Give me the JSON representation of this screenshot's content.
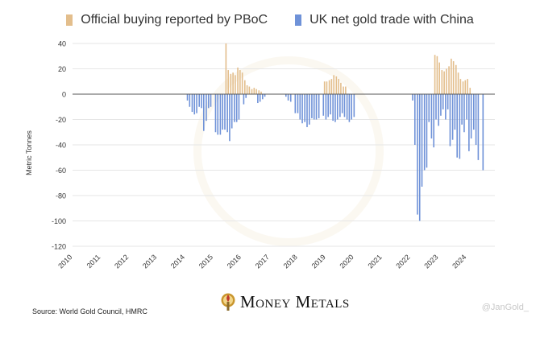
{
  "colors": {
    "pboc": "#e3be8c",
    "uk": "#6f92d8"
  },
  "legend": {
    "pboc_label": "Official buying reported by PBoC",
    "uk_label": "UK net gold trade with China"
  },
  "source": "Source: World Gold Council, HMRC",
  "brand": "Money Metals",
  "handle": "@JanGold_",
  "chart_data": {
    "type": "bar",
    "ylabel": "Metric Tonnes",
    "ylim": [
      -120,
      40
    ],
    "yticks": [
      40,
      20,
      0,
      -20,
      -40,
      -60,
      -80,
      -100,
      -120
    ],
    "xlim": [
      2010,
      2025
    ],
    "xtick_labels": [
      "2010",
      "2011",
      "2012",
      "2013",
      "2014",
      "2015",
      "2016",
      "2017",
      "2018",
      "2019",
      "2020",
      "2021",
      "2022",
      "2023",
      "2024"
    ],
    "grid": true,
    "legend_position": "top",
    "series": [
      {
        "name": "Official buying reported by PBoC",
        "color": "#e3be8c",
        "points": [
          [
            2015.45,
            40
          ],
          [
            2015.53,
            19
          ],
          [
            2015.62,
            16
          ],
          [
            2015.7,
            17
          ],
          [
            2015.78,
            15
          ],
          [
            2015.87,
            21
          ],
          [
            2015.95,
            19
          ],
          [
            2016.03,
            17
          ],
          [
            2016.12,
            11
          ],
          [
            2016.2,
            7
          ],
          [
            2016.28,
            6
          ],
          [
            2016.37,
            4
          ],
          [
            2016.45,
            5
          ],
          [
            2016.53,
            4
          ],
          [
            2016.62,
            3
          ],
          [
            2016.7,
            2
          ],
          [
            2018.95,
            10
          ],
          [
            2019.03,
            10
          ],
          [
            2019.12,
            11
          ],
          [
            2019.2,
            12
          ],
          [
            2019.28,
            15
          ],
          [
            2019.37,
            14
          ],
          [
            2019.45,
            12
          ],
          [
            2019.53,
            9
          ],
          [
            2019.62,
            6
          ],
          [
            2019.7,
            6
          ],
          [
            2022.87,
            31
          ],
          [
            2022.95,
            30
          ],
          [
            2023.03,
            25
          ],
          [
            2023.12,
            19
          ],
          [
            2023.2,
            18
          ],
          [
            2023.28,
            20
          ],
          [
            2023.37,
            22
          ],
          [
            2023.45,
            28
          ],
          [
            2023.53,
            26
          ],
          [
            2023.62,
            23
          ],
          [
            2023.7,
            17
          ],
          [
            2023.78,
            12
          ],
          [
            2023.87,
            10
          ],
          [
            2023.95,
            11
          ],
          [
            2024.03,
            12
          ],
          [
            2024.12,
            5
          ]
        ]
      },
      {
        "name": "UK net gold trade with China",
        "color": "#6f92d8",
        "points": [
          [
            2014.08,
            -5
          ],
          [
            2014.16,
            -10
          ],
          [
            2014.25,
            -14
          ],
          [
            2014.33,
            -16
          ],
          [
            2014.41,
            -15
          ],
          [
            2014.5,
            -10
          ],
          [
            2014.58,
            -11
          ],
          [
            2014.66,
            -29
          ],
          [
            2014.75,
            -21
          ],
          [
            2014.83,
            -11
          ],
          [
            2014.91,
            -10
          ],
          [
            2015.08,
            -30
          ],
          [
            2015.16,
            -32
          ],
          [
            2015.25,
            -32
          ],
          [
            2015.33,
            -28
          ],
          [
            2015.41,
            -28
          ],
          [
            2015.5,
            -30
          ],
          [
            2015.58,
            -37
          ],
          [
            2015.66,
            -27
          ],
          [
            2015.75,
            -22
          ],
          [
            2015.83,
            -22
          ],
          [
            2015.91,
            -20
          ],
          [
            2016.08,
            -8
          ],
          [
            2016.16,
            -3
          ],
          [
            2016.58,
            -7
          ],
          [
            2016.66,
            -6
          ],
          [
            2016.75,
            -4
          ],
          [
            2016.83,
            -2
          ],
          [
            2017.58,
            -2
          ],
          [
            2017.66,
            -5
          ],
          [
            2017.75,
            -6
          ],
          [
            2017.91,
            -15
          ],
          [
            2018.0,
            -15
          ],
          [
            2018.08,
            -20
          ],
          [
            2018.16,
            -23
          ],
          [
            2018.25,
            -22
          ],
          [
            2018.33,
            -26
          ],
          [
            2018.41,
            -24
          ],
          [
            2018.5,
            -19
          ],
          [
            2018.58,
            -20
          ],
          [
            2018.66,
            -20
          ],
          [
            2018.75,
            -19
          ],
          [
            2018.91,
            -17
          ],
          [
            2019.0,
            -20
          ],
          [
            2019.08,
            -18
          ],
          [
            2019.16,
            -16
          ],
          [
            2019.25,
            -21
          ],
          [
            2019.33,
            -22
          ],
          [
            2019.41,
            -20
          ],
          [
            2019.5,
            -18
          ],
          [
            2019.58,
            -15
          ],
          [
            2019.66,
            -18
          ],
          [
            2019.75,
            -20
          ],
          [
            2019.83,
            -22
          ],
          [
            2019.91,
            -20
          ],
          [
            2020.0,
            -18
          ],
          [
            2022.08,
            -5
          ],
          [
            2022.16,
            -40
          ],
          [
            2022.25,
            -95
          ],
          [
            2022.33,
            -100
          ],
          [
            2022.41,
            -73
          ],
          [
            2022.5,
            -60
          ],
          [
            2022.58,
            -58
          ],
          [
            2022.66,
            -22
          ],
          [
            2022.75,
            -35
          ],
          [
            2022.83,
            -42
          ],
          [
            2022.91,
            -20
          ],
          [
            2023.0,
            -25
          ],
          [
            2023.08,
            -17
          ],
          [
            2023.16,
            -12
          ],
          [
            2023.25,
            -20
          ],
          [
            2023.33,
            -12
          ],
          [
            2023.41,
            -41
          ],
          [
            2023.5,
            -36
          ],
          [
            2023.58,
            -28
          ],
          [
            2023.66,
            -50
          ],
          [
            2023.75,
            -51
          ],
          [
            2023.83,
            -24
          ],
          [
            2023.91,
            -30
          ],
          [
            2024.0,
            -20
          ],
          [
            2024.08,
            -45
          ],
          [
            2024.16,
            -35
          ],
          [
            2024.25,
            -28
          ],
          [
            2024.33,
            -40
          ],
          [
            2024.41,
            -52
          ],
          [
            2024.58,
            -60
          ]
        ]
      }
    ]
  }
}
